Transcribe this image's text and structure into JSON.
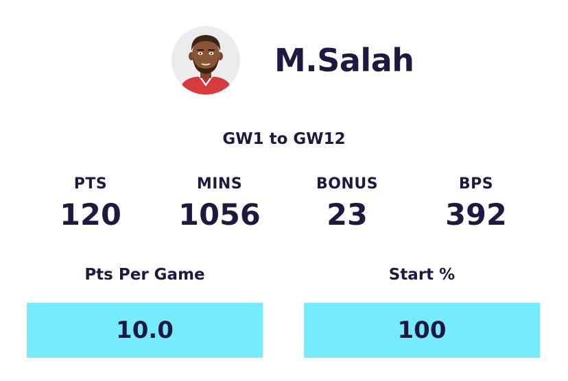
{
  "player": {
    "name": "M.Salah",
    "avatar_icon": "player-avatar-icon",
    "kit_color": "#d63a3a"
  },
  "range": "GW1 to GW12",
  "stats": {
    "pts": {
      "label": "PTS",
      "value": "120"
    },
    "mins": {
      "label": "MINS",
      "value": "1056"
    },
    "bonus": {
      "label": "BONUS",
      "value": "23"
    },
    "bps": {
      "label": "BPS",
      "value": "392"
    }
  },
  "metrics": {
    "pts_per_game": {
      "label": "Pts Per Game",
      "value": "10.0"
    },
    "start_pct": {
      "label": "Start %",
      "value": "100"
    }
  },
  "colors": {
    "text": "#1e1940",
    "highlight": "#76ebfb",
    "avatar_bg": "#ececec"
  }
}
